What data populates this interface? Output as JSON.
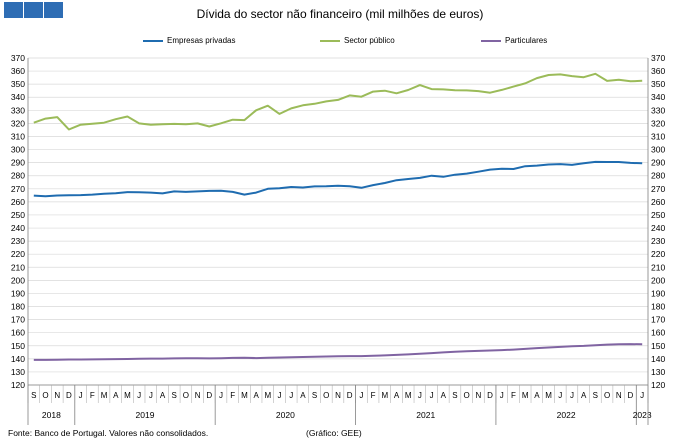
{
  "header": {
    "icon_name": "logo-squares-icon",
    "color": "#2e6db4"
  },
  "footer": {
    "source": "Fonte: Banco de Portugal. Valores não consolidados.",
    "credit": "(Gráfico: GEE)"
  },
  "chart_data": {
    "type": "line",
    "title": "Dívida do sector não financeiro (mil milhões de euros)",
    "xlabel": "",
    "ylabel": "",
    "ylim": [
      120,
      370
    ],
    "ytick_step": 10,
    "grid": true,
    "legend_position": "top",
    "month_letters": [
      "S",
      "O",
      "N",
      "D",
      "J",
      "F",
      "M",
      "A",
      "M",
      "J",
      "J",
      "A",
      "S",
      "O",
      "N",
      "D",
      "J",
      "F",
      "M",
      "A",
      "M",
      "J",
      "J",
      "A",
      "S",
      "O",
      "N",
      "D",
      "J",
      "F",
      "M",
      "A",
      "M",
      "J",
      "J",
      "A",
      "S",
      "O",
      "N",
      "D",
      "J",
      "F",
      "M",
      "A",
      "M",
      "J",
      "J",
      "A",
      "S",
      "O",
      "N",
      "D",
      "J"
    ],
    "year_labels": [
      {
        "label": "2018",
        "start": 0,
        "end": 3
      },
      {
        "label": "2019",
        "start": 4,
        "end": 15
      },
      {
        "label": "2020",
        "start": 16,
        "end": 27
      },
      {
        "label": "2021",
        "start": 28,
        "end": 39
      },
      {
        "label": "2022",
        "start": 40,
        "end": 51
      },
      {
        "label": "2023",
        "start": 52,
        "end": 52
      }
    ],
    "series": [
      {
        "name": "Empresas privadas",
        "color": "#1f6cb0",
        "values": [
          264.8,
          264.3,
          264.9,
          265.0,
          265.2,
          265.6,
          266.2,
          266.6,
          267.5,
          267.3,
          267.1,
          266.5,
          268.0,
          267.6,
          268.0,
          268.4,
          268.5,
          267.6,
          265.6,
          267.1,
          270.0,
          270.4,
          271.4,
          271.0,
          271.8,
          271.9,
          272.4,
          272.0,
          270.8,
          272.8,
          274.4,
          276.6,
          277.5,
          278.3,
          280.0,
          279.2,
          280.8,
          281.6,
          283.1,
          284.7,
          285.3,
          285.1,
          287.3,
          287.7,
          288.6,
          288.9,
          288.3,
          289.6,
          290.6,
          290.5,
          290.5,
          289.8,
          289.5
        ]
      },
      {
        "name": "Sector público",
        "color": "#9bbb59",
        "values": [
          320.5,
          323.7,
          324.8,
          315.3,
          319.0,
          319.8,
          320.5,
          323.2,
          325.3,
          320.0,
          319.0,
          319.3,
          319.6,
          319.3,
          320.0,
          317.6,
          320.1,
          322.8,
          322.5,
          330.0,
          333.5,
          327.3,
          331.5,
          333.8,
          335.0,
          336.8,
          338.0,
          341.4,
          340.4,
          344.3,
          345.0,
          343.0,
          345.5,
          349.3,
          346.2,
          346.0,
          345.3,
          345.2,
          344.7,
          343.5,
          345.6,
          348.1,
          350.6,
          354.6,
          357.0,
          357.5,
          356.2,
          355.3,
          357.9,
          352.5,
          353.4,
          352.2,
          352.6
        ]
      },
      {
        "name": "Particulares",
        "color": "#8064a2",
        "values": [
          139.2,
          139.2,
          139.3,
          139.5,
          139.5,
          139.6,
          139.7,
          139.8,
          139.9,
          140.1,
          140.2,
          140.2,
          140.3,
          140.4,
          140.4,
          140.3,
          140.5,
          140.7,
          140.9,
          140.6,
          140.8,
          141.0,
          141.2,
          141.4,
          141.6,
          141.8,
          142.0,
          142.1,
          142.1,
          142.3,
          142.6,
          143.0,
          143.4,
          143.9,
          144.4,
          144.9,
          145.4,
          145.8,
          146.1,
          146.4,
          146.7,
          147.1,
          147.6,
          148.2,
          148.7,
          149.1,
          149.6,
          149.9,
          150.4,
          150.9,
          151.2,
          151.3,
          151.1
        ]
      }
    ]
  }
}
